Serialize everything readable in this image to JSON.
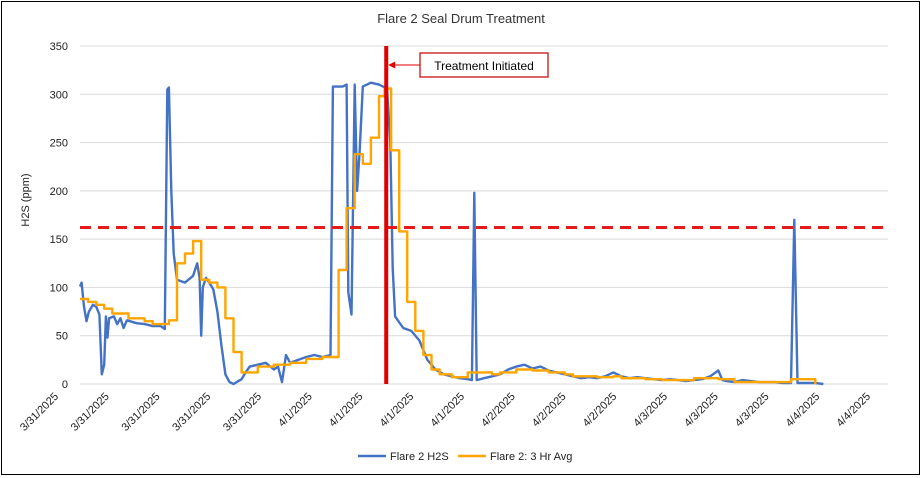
{
  "chart_data": {
    "type": "line",
    "title": "Flare 2 Seal Drum Treatment",
    "ylabel": "H2S (ppm)",
    "xlabel": "",
    "ylim": [
      0,
      350
    ],
    "yticks": [
      0,
      50,
      100,
      150,
      200,
      250,
      300,
      350
    ],
    "xlim": [
      0,
      100
    ],
    "x_tick_labels": [
      "3/31/2025",
      "3/31/2025",
      "3/31/2025",
      "3/31/2025",
      "3/31/2025",
      "4/1/2025",
      "4/1/2025",
      "4/1/2025",
      "4/1/2025",
      "4/2/2025",
      "4/2/2025",
      "4/2/2025",
      "4/3/2025",
      "4/3/2025",
      "4/3/2025",
      "4/4/2025",
      "4/4/2025"
    ],
    "grid": true,
    "legend_position": "bottom",
    "threshold_value": 162,
    "annotation": {
      "text": "Treatment Initiated",
      "x": 37.9
    },
    "series": [
      {
        "name": "Flare 2 H2S",
        "color": "#4472C4",
        "points": [
          [
            0,
            101
          ],
          [
            0.2,
            105
          ],
          [
            0.5,
            80
          ],
          [
            0.8,
            65
          ],
          [
            1.1,
            75
          ],
          [
            1.6,
            82
          ],
          [
            2,
            80
          ],
          [
            2.4,
            72
          ],
          [
            2.7,
            10
          ],
          [
            3.0,
            20
          ],
          [
            3.2,
            70
          ],
          [
            3.4,
            48
          ],
          [
            3.6,
            68
          ],
          [
            4.2,
            70
          ],
          [
            4.6,
            62
          ],
          [
            5,
            68
          ],
          [
            5.4,
            58
          ],
          [
            5.8,
            66
          ],
          [
            7,
            63
          ],
          [
            8,
            62
          ],
          [
            9,
            60
          ],
          [
            10,
            60
          ],
          [
            10.5,
            57
          ],
          [
            10.8,
            305
          ],
          [
            11.0,
            307
          ],
          [
            11.3,
            200
          ],
          [
            11.6,
            135
          ],
          [
            12,
            108
          ],
          [
            13,
            105
          ],
          [
            14,
            112
          ],
          [
            14.5,
            125
          ],
          [
            14.8,
            110
          ],
          [
            15.0,
            50
          ],
          [
            15.2,
            100
          ],
          [
            15.6,
            110
          ],
          [
            16,
            105
          ],
          [
            16.5,
            98
          ],
          [
            17,
            75
          ],
          [
            17.5,
            40
          ],
          [
            18,
            10
          ],
          [
            18.5,
            2
          ],
          [
            19,
            0
          ],
          [
            20,
            5
          ],
          [
            20.5,
            12
          ],
          [
            21,
            18
          ],
          [
            22,
            20
          ],
          [
            23,
            22
          ],
          [
            24,
            15
          ],
          [
            24.5,
            18
          ],
          [
            25,
            2
          ],
          [
            25.5,
            30
          ],
          [
            26,
            22
          ],
          [
            27,
            25
          ],
          [
            28,
            28
          ],
          [
            29,
            30
          ],
          [
            30,
            28
          ],
          [
            31,
            30
          ],
          [
            31.3,
            308
          ],
          [
            32.5,
            308
          ],
          [
            33.0,
            310
          ],
          [
            33.2,
            95
          ],
          [
            33.6,
            72
          ],
          [
            34.0,
            310
          ],
          [
            34.3,
            200
          ],
          [
            34.6,
            240
          ],
          [
            35.0,
            308
          ],
          [
            36,
            312
          ],
          [
            37,
            310
          ],
          [
            38,
            306
          ],
          [
            38.4,
            250
          ],
          [
            38.7,
            120
          ],
          [
            39,
            70
          ],
          [
            40,
            58
          ],
          [
            41,
            55
          ],
          [
            42,
            45
          ],
          [
            43,
            25
          ],
          [
            44,
            15
          ],
          [
            45,
            10
          ],
          [
            46,
            8
          ],
          [
            47,
            6
          ],
          [
            48,
            5
          ],
          [
            48.5,
            4
          ],
          [
            48.8,
            198
          ],
          [
            49.1,
            4
          ],
          [
            50,
            6
          ],
          [
            51,
            8
          ],
          [
            52,
            10
          ],
          [
            53,
            15
          ],
          [
            54,
            18
          ],
          [
            55,
            20
          ],
          [
            56,
            16
          ],
          [
            57,
            18
          ],
          [
            58,
            14
          ],
          [
            59,
            12
          ],
          [
            60,
            10
          ],
          [
            61,
            8
          ],
          [
            62,
            6
          ],
          [
            63,
            7
          ],
          [
            64,
            6
          ],
          [
            65,
            8
          ],
          [
            66,
            12
          ],
          [
            67,
            8
          ],
          [
            68,
            6
          ],
          [
            69,
            7
          ],
          [
            70,
            6
          ],
          [
            71,
            5
          ],
          [
            72,
            4
          ],
          [
            73,
            5
          ],
          [
            74,
            4
          ],
          [
            75,
            3
          ],
          [
            76,
            4
          ],
          [
            77,
            5
          ],
          [
            78,
            8
          ],
          [
            79,
            14
          ],
          [
            79.5,
            4
          ],
          [
            80,
            3
          ],
          [
            81,
            2
          ],
          [
            82,
            4
          ],
          [
            83,
            3
          ],
          [
            84,
            2
          ],
          [
            85,
            2
          ],
          [
            86,
            2
          ],
          [
            87,
            1
          ],
          [
            88,
            1
          ],
          [
            88.4,
            170
          ],
          [
            88.8,
            1
          ],
          [
            90,
            1
          ],
          [
            91,
            1
          ],
          [
            92,
            0
          ]
        ]
      },
      {
        "name": "Flare 2: 3 Hr Avg",
        "color": "#FFA500",
        "points": [
          [
            0,
            88
          ],
          [
            1,
            88
          ],
          [
            1,
            85
          ],
          [
            2,
            85
          ],
          [
            2,
            82
          ],
          [
            3,
            82
          ],
          [
            3,
            78
          ],
          [
            4,
            78
          ],
          [
            4,
            73
          ],
          [
            6,
            73
          ],
          [
            6,
            68
          ],
          [
            8,
            68
          ],
          [
            8,
            65
          ],
          [
            9,
            65
          ],
          [
            9,
            62
          ],
          [
            11,
            62
          ],
          [
            11,
            66
          ],
          [
            12,
            66
          ],
          [
            12,
            125
          ],
          [
            13,
            125
          ],
          [
            13,
            135
          ],
          [
            14,
            135
          ],
          [
            14,
            148
          ],
          [
            15,
            148
          ],
          [
            15,
            108
          ],
          [
            16,
            108
          ],
          [
            16,
            105
          ],
          [
            17,
            105
          ],
          [
            17,
            100
          ],
          [
            18,
            100
          ],
          [
            18,
            68
          ],
          [
            19,
            68
          ],
          [
            19,
            33
          ],
          [
            20,
            33
          ],
          [
            20,
            12
          ],
          [
            22,
            12
          ],
          [
            22,
            18
          ],
          [
            24,
            18
          ],
          [
            24,
            20
          ],
          [
            26,
            20
          ],
          [
            26,
            22
          ],
          [
            28,
            22
          ],
          [
            28,
            26
          ],
          [
            30,
            26
          ],
          [
            30,
            28
          ],
          [
            32,
            28
          ],
          [
            32,
            118
          ],
          [
            33,
            118
          ],
          [
            33,
            182
          ],
          [
            34,
            182
          ],
          [
            34,
            238
          ],
          [
            35,
            238
          ],
          [
            35,
            228
          ],
          [
            36,
            228
          ],
          [
            36,
            255
          ],
          [
            37,
            255
          ],
          [
            37,
            298
          ],
          [
            37.7,
            298
          ],
          [
            37.7,
            306
          ],
          [
            38.5,
            306
          ],
          [
            38.5,
            242
          ],
          [
            39.5,
            242
          ],
          [
            39.5,
            158
          ],
          [
            40.5,
            158
          ],
          [
            40.5,
            85
          ],
          [
            41.5,
            85
          ],
          [
            41.5,
            55
          ],
          [
            42.5,
            55
          ],
          [
            42.5,
            30
          ],
          [
            43.5,
            30
          ],
          [
            43.5,
            15
          ],
          [
            44.5,
            15
          ],
          [
            44.5,
            10
          ],
          [
            46,
            10
          ],
          [
            46,
            7
          ],
          [
            48,
            7
          ],
          [
            48,
            12
          ],
          [
            51,
            12
          ],
          [
            51,
            10
          ],
          [
            52,
            10
          ],
          [
            52,
            12
          ],
          [
            54,
            12
          ],
          [
            54,
            15
          ],
          [
            56,
            15
          ],
          [
            56,
            14
          ],
          [
            58,
            14
          ],
          [
            58,
            12
          ],
          [
            60,
            12
          ],
          [
            60,
            10
          ],
          [
            61,
            10
          ],
          [
            61,
            8
          ],
          [
            64,
            8
          ],
          [
            64,
            7
          ],
          [
            66,
            7
          ],
          [
            66,
            8
          ],
          [
            67,
            8
          ],
          [
            67,
            6
          ],
          [
            70,
            6
          ],
          [
            70,
            5
          ],
          [
            72,
            5
          ],
          [
            72,
            4
          ],
          [
            76,
            4
          ],
          [
            76,
            6
          ],
          [
            79,
            6
          ],
          [
            79,
            5
          ],
          [
            81,
            5
          ],
          [
            81,
            2
          ],
          [
            88,
            2
          ],
          [
            88,
            5
          ],
          [
            91,
            5
          ],
          [
            91,
            0
          ]
        ]
      }
    ]
  }
}
